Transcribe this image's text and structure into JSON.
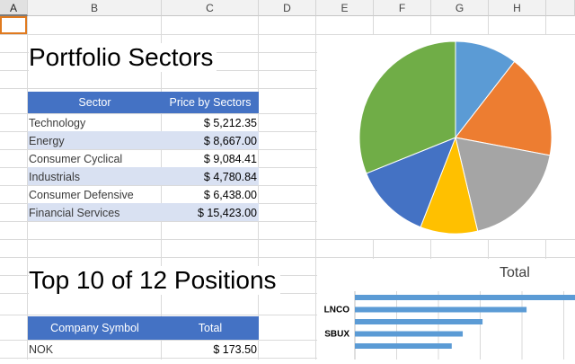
{
  "columns": [
    "A",
    "B",
    "C",
    "D",
    "E",
    "F",
    "G",
    "H"
  ],
  "sectors": {
    "title": "Portfolio Sectors",
    "header": {
      "col1": "Sector",
      "col2": "Price by Sectors"
    },
    "rows": [
      {
        "name": "Technology",
        "price": "$ 5,212.35"
      },
      {
        "name": "Energy",
        "price": "$ 8,667.00"
      },
      {
        "name": "Consumer Cyclical",
        "price": "$ 9,084.41"
      },
      {
        "name": "Industrials",
        "price": "$ 4,780.84"
      },
      {
        "name": "Consumer Defensive",
        "price": "$ 6,438.00"
      },
      {
        "name": "Financial Services",
        "price": "$ 15,423.00"
      }
    ]
  },
  "positions": {
    "title": "Top 10 of 12 Positions",
    "header": {
      "col1": "Company Symbol",
      "col2": "Total"
    },
    "rows": [
      {
        "name": "NOK",
        "total": "$ 173.50"
      }
    ]
  },
  "chart_data": [
    {
      "type": "pie",
      "categories": [
        "Technology",
        "Energy",
        "Consumer Cyclical",
        "Industrials",
        "Consumer Defensive",
        "Financial Services"
      ],
      "values": [
        5212.35,
        8667.0,
        9084.41,
        4780.84,
        6438.0,
        15423.0
      ],
      "colors": [
        "#5b9bd5",
        "#ed7d31",
        "#a5a5a5",
        "#ffc000",
        "#4472c4",
        "#70ad47"
      ]
    },
    {
      "type": "bar",
      "title": "Total",
      "orientation": "horizontal",
      "categories": [
        "",
        "LNCO",
        "",
        "SBUX",
        ""
      ],
      "values": [
        1.0,
        0.78,
        0.58,
        0.49,
        0.44
      ],
      "color": "#5b9bd5"
    }
  ]
}
